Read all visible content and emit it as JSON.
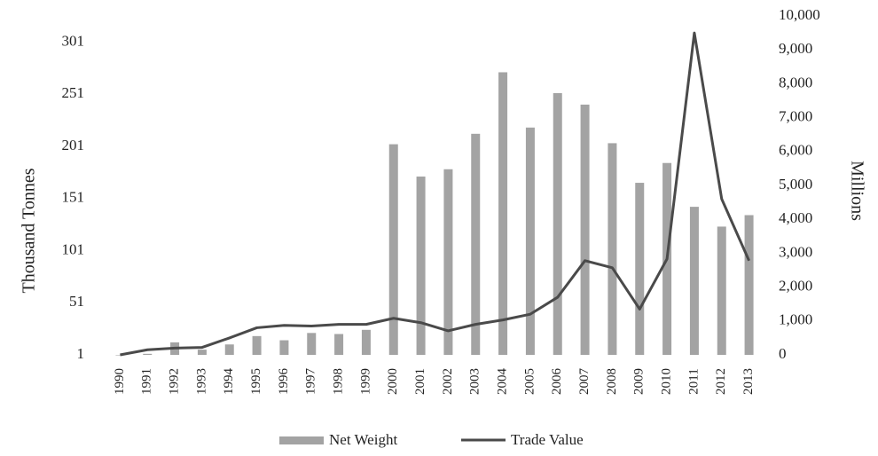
{
  "chart_data": {
    "type": "bar_line",
    "categories": [
      "1990",
      "1991",
      "1992",
      "1993",
      "1994",
      "1995",
      "1996",
      "1997",
      "1998",
      "1999",
      "2000",
      "2001",
      "2002",
      "2003",
      "2004",
      "2005",
      "2006",
      "2007",
      "2008",
      "2009",
      "2010",
      "2011",
      "2012",
      "2013"
    ],
    "series": [
      {
        "name": "Net Weight",
        "type": "bar",
        "color": "#a3a3a3",
        "axis": "y",
        "values": [
          1,
          2,
          13,
          6,
          11,
          19,
          15,
          22,
          21,
          25,
          203,
          172,
          179,
          213,
          272,
          219,
          252,
          241,
          204,
          166,
          185,
          143,
          124,
          135
        ]
      },
      {
        "name": "Trade Value",
        "type": "line",
        "color": "#4a4a4a",
        "axis": "y2",
        "values": [
          0,
          150,
          200,
          220,
          500,
          800,
          870,
          850,
          900,
          900,
          1080,
          950,
          710,
          900,
          1030,
          1200,
          1700,
          2780,
          2570,
          1350,
          2830,
          9500,
          4600,
          2780
        ]
      }
    ],
    "y_label": "Thousand  Tonnes",
    "y2_label": "Millions",
    "ylim": [
      1,
      326
    ],
    "yticks": [
      1,
      51,
      101,
      151,
      201,
      251,
      301
    ],
    "y2lim": [
      0,
      10000
    ],
    "y2ticks": [
      0,
      {
        "value": 1000,
        "label": "1,000"
      },
      {
        "value": 2000,
        "label": "2,000"
      },
      {
        "value": 3000,
        "label": "3,000"
      },
      {
        "value": 4000,
        "label": "4,000"
      },
      {
        "value": 5000,
        "label": "5,000"
      },
      {
        "value": 6000,
        "label": "6,000"
      },
      {
        "value": 7000,
        "label": "7,000"
      },
      {
        "value": 8000,
        "label": "8,000"
      },
      {
        "value": 9000,
        "label": "9,000"
      },
      {
        "value": 10000,
        "label": "10,000"
      }
    ],
    "legend": "bottom"
  }
}
